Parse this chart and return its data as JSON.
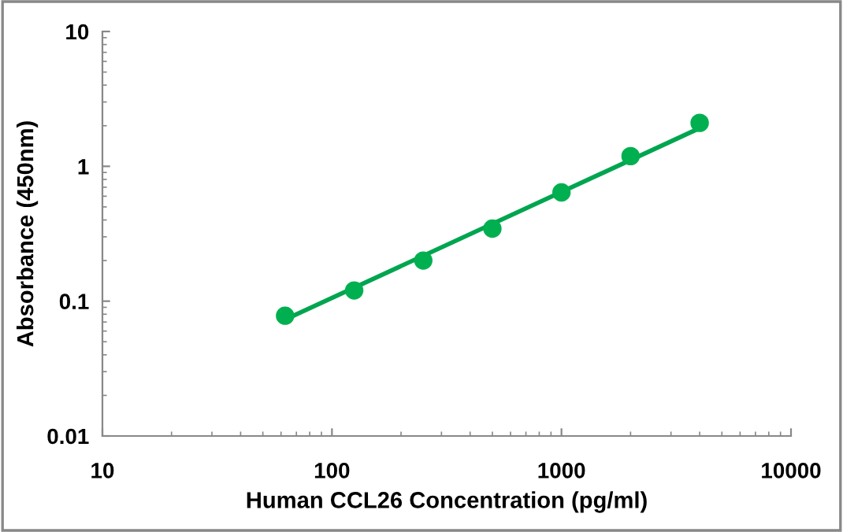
{
  "chart_data": {
    "type": "scatter",
    "xlabel": "Human CCL26 Concentration (pg/ml)",
    "ylabel": "Absorbance (450nm)",
    "log": "xy",
    "grid": false,
    "marker": "circle",
    "xlim": [
      10,
      10000
    ],
    "xticks": [
      10,
      100,
      1000,
      10000
    ],
    "ylim": [
      0.01,
      10
    ],
    "yticks": [
      0.01,
      0.1,
      1,
      10
    ],
    "series": [
      {
        "color": "#00b050",
        "x": [
          62.5,
          125,
          250,
          500,
          1000,
          2000,
          4000
        ],
        "values": [
          0.078,
          0.12,
          0.2,
          0.345,
          0.64,
          1.19,
          2.1
        ]
      },
      {
        "type": "line",
        "color": "#00a550",
        "marker": "none",
        "line_style": "solid",
        "x": [
          62.5,
          4000
        ],
        "values": [
          0.073,
          1.92
        ]
      }
    ]
  }
}
